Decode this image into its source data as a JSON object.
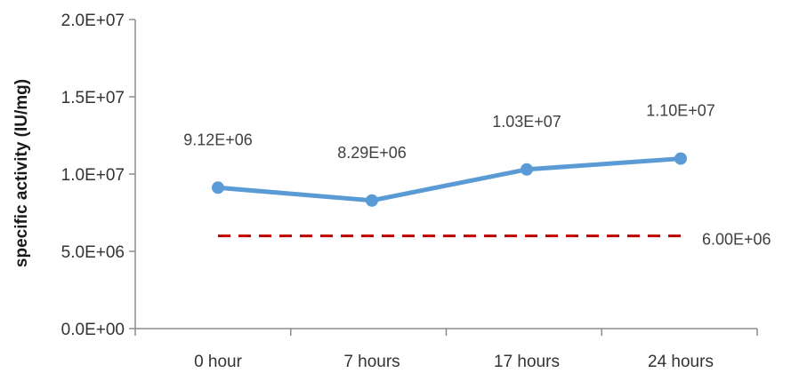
{
  "chart_data": {
    "type": "line",
    "categories": [
      "0 hour",
      "7 hours",
      "17 hours",
      "24 hours"
    ],
    "series": [
      {
        "values": [
          9120000,
          8290000,
          10300000,
          11000000
        ],
        "data_labels": [
          "9.12E+06",
          "8.29E+06",
          "1.03E+07",
          "1.10E+07"
        ],
        "color": "#5b9bd5"
      }
    ],
    "reference_line": {
      "value": 6000000,
      "label": "6.00E+06",
      "color": "#c00000",
      "style": "dashed"
    },
    "ylabel": "specific activity (IU/mg)",
    "ylim": [
      0,
      20000000
    ],
    "yticks": [
      0,
      5000000,
      10000000,
      15000000,
      20000000
    ],
    "ytick_labels": [
      "0.0E+00",
      "5.0E+06",
      "1.0E+07",
      "1.5E+07",
      "2.0E+07"
    ],
    "grid": false,
    "legend": "none"
  }
}
